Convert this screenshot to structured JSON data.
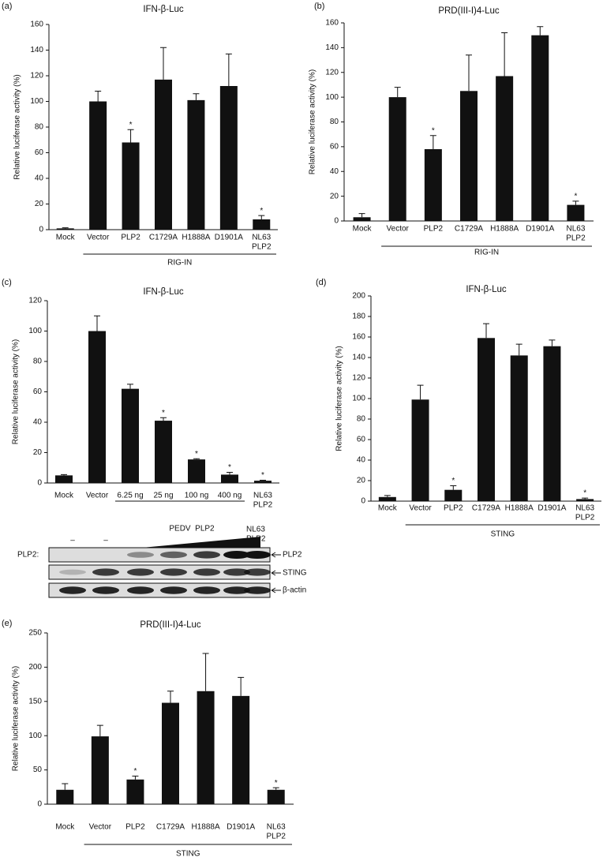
{
  "chart_data": [
    {
      "type": "bar",
      "panel": "(a)",
      "title": "IFN-β-Luc",
      "y_label": "Relative luciferase activity (%)",
      "color": "#111111",
      "categories": [
        "Mock",
        "Vector",
        "PLP2",
        "C1729A",
        "H1888A",
        "D1901A",
        [
          "NL63",
          "PLP2"
        ]
      ],
      "values": [
        1,
        100,
        68,
        117,
        101,
        112,
        8
      ],
      "errors": [
        0.5,
        8,
        10,
        25,
        5,
        25,
        3
      ],
      "significance": [
        null,
        null,
        "*",
        null,
        null,
        null,
        "*"
      ],
      "group_label": "RIG-IN",
      "ylim": [
        0,
        160
      ],
      "yticks": [
        0,
        20,
        40,
        60,
        80,
        100,
        120,
        140,
        160
      ]
    },
    {
      "type": "bar",
      "panel": "(b)",
      "title": "PRD(III-I)4-Luc",
      "y_label": "Relative luciferase activity (%)",
      "color": "#111111",
      "categories": [
        "Mock",
        "Vector",
        "PLP2",
        "C1729A",
        "H1888A",
        "D1901A",
        [
          "NL63",
          "PLP2"
        ]
      ],
      "values": [
        3,
        100,
        58,
        105,
        117,
        150,
        13
      ],
      "errors": [
        3,
        8,
        11,
        29,
        35,
        7,
        3
      ],
      "significance": [
        null,
        null,
        "*",
        null,
        null,
        null,
        "*"
      ],
      "group_label": "RIG-IN",
      "ylim": [
        0,
        160
      ],
      "yticks": [
        0,
        20,
        40,
        60,
        80,
        100,
        120,
        140,
        160
      ]
    },
    {
      "type": "bar",
      "panel": "(c)",
      "title": "IFN-β-Luc",
      "y_label": "Relative luciferase activity (%)",
      "color": "#111111",
      "categories": [
        "Mock",
        "Vector",
        "6.25 ng",
        "25 ng",
        "100 ng",
        "400 ng",
        [
          "NL63",
          "PLP2"
        ]
      ],
      "values": [
        5,
        100,
        62,
        41,
        15.5,
        5.5,
        1.5
      ],
      "errors": [
        0.5,
        10,
        3,
        2,
        0.5,
        1.5,
        0.3
      ],
      "significance": [
        null,
        null,
        null,
        "*",
        "*",
        "*",
        "*"
      ],
      "ylim": [
        0,
        120
      ],
      "yticks": [
        0,
        20,
        40,
        60,
        80,
        100,
        120
      ]
    },
    {
      "type": "bar",
      "panel": "(d)",
      "title": "IFN-β-Luc",
      "y_label": "Relative luciferase activity (%)",
      "color": "#111111",
      "categories": [
        "Mock",
        "Vector",
        "PLP2",
        "C1729A",
        "H1888A",
        "D1901A",
        [
          "NL63",
          "PLP2"
        ]
      ],
      "values": [
        4,
        99,
        11,
        159,
        142,
        151,
        2
      ],
      "errors": [
        1.5,
        14,
        4,
        14,
        11,
        6,
        1
      ],
      "significance": [
        null,
        null,
        "*",
        null,
        null,
        null,
        "*"
      ],
      "group_label": "STING",
      "ylim": [
        0,
        200
      ],
      "yticks": [
        0,
        20,
        40,
        60,
        80,
        100,
        120,
        140,
        160,
        180,
        200
      ]
    },
    {
      "type": "bar",
      "panel": "(e)",
      "title": "PRD(III-I)4-Luc",
      "y_label": "Relative luciferase activity (%)",
      "color": "#111111",
      "categories": [
        "Mock",
        "Vector",
        "PLP2",
        "C1729A",
        "H1888A",
        "D1901A",
        [
          "NL63",
          "PLP2"
        ]
      ],
      "values": [
        21,
        99,
        36,
        148,
        165,
        158,
        21
      ],
      "errors": [
        9,
        16,
        5,
        17,
        55,
        27,
        3
      ],
      "significance": [
        null,
        null,
        "*",
        null,
        null,
        null,
        "*"
      ],
      "group_label": "STING",
      "ylim": [
        0,
        250
      ],
      "yticks": [
        0,
        50,
        100,
        150,
        200,
        250
      ]
    }
  ],
  "blot": {
    "label": "PLP2:",
    "dashes": [
      "–",
      "–"
    ],
    "treatment": "PEDV  PLP2",
    "control": [
      "NL63",
      "PLP2"
    ],
    "rows": [
      "PLP2",
      "STING",
      "β-actin"
    ]
  }
}
